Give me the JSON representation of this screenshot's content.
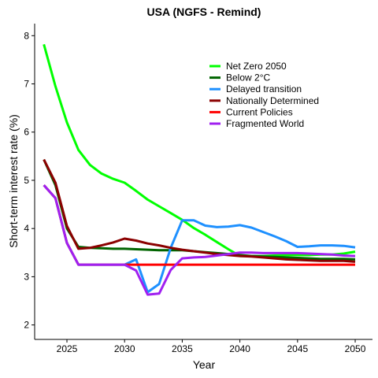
{
  "chart_data": {
    "type": "line",
    "title": "USA (NGFS - Remind)",
    "xlabel": "Year",
    "ylabel": "Short-term interest rate (%)",
    "xlim": [
      2022.2,
      2051.5
    ],
    "ylim": [
      1.7,
      8.25
    ],
    "x_ticks": [
      2025,
      2030,
      2035,
      2040,
      2045,
      2050
    ],
    "y_ticks": [
      2,
      3,
      4,
      5,
      6,
      7,
      8
    ],
    "grid": false,
    "legend_position": "top-right",
    "x": [
      2023,
      2024,
      2025,
      2026,
      2027,
      2028,
      2029,
      2030,
      2031,
      2032,
      2033,
      2034,
      2035,
      2036,
      2037,
      2038,
      2039,
      2040,
      2041,
      2042,
      2043,
      2044,
      2045,
      2046,
      2047,
      2048,
      2049,
      2050
    ],
    "series": [
      {
        "name": "Net Zero 2050",
        "color": "#00ff00",
        "values": [
          7.82,
          6.95,
          6.2,
          5.63,
          5.32,
          5.14,
          5.03,
          4.95,
          4.78,
          4.6,
          4.46,
          4.32,
          4.18,
          4.01,
          3.87,
          3.72,
          3.57,
          3.43,
          3.43,
          3.43,
          3.44,
          3.45,
          3.45,
          3.45,
          3.46,
          3.46,
          3.48,
          3.52
        ]
      },
      {
        "name": "Below 2°C",
        "color": "#006400",
        "values": [
          5.43,
          4.9,
          4.0,
          3.62,
          3.6,
          3.59,
          3.58,
          3.58,
          3.57,
          3.56,
          3.55,
          3.55,
          3.55,
          3.53,
          3.51,
          3.49,
          3.47,
          3.45,
          3.43,
          3.42,
          3.41,
          3.4,
          3.39,
          3.38,
          3.37,
          3.37,
          3.37,
          3.36
        ]
      },
      {
        "name": "Delayed transition",
        "color": "#1e90ff",
        "values": [
          4.9,
          4.63,
          3.7,
          3.25,
          3.25,
          3.25,
          3.25,
          3.25,
          3.36,
          2.68,
          2.85,
          3.6,
          4.17,
          4.17,
          4.06,
          4.03,
          4.04,
          4.07,
          4.02,
          3.93,
          3.84,
          3.74,
          3.62,
          3.63,
          3.65,
          3.65,
          3.64,
          3.61
        ]
      },
      {
        "name": "Nationally Determined",
        "color": "#8b0000",
        "values": [
          5.43,
          4.95,
          4.05,
          3.58,
          3.6,
          3.65,
          3.71,
          3.79,
          3.75,
          3.69,
          3.65,
          3.6,
          3.56,
          3.53,
          3.5,
          3.47,
          3.45,
          3.43,
          3.42,
          3.4,
          3.38,
          3.36,
          3.35,
          3.34,
          3.33,
          3.33,
          3.33,
          3.31
        ]
      },
      {
        "name": "Current Policies",
        "color": "#ff0000",
        "values": [
          4.9,
          4.63,
          3.7,
          3.25,
          3.25,
          3.25,
          3.25,
          3.25,
          3.25,
          3.25,
          3.25,
          3.25,
          3.25,
          3.25,
          3.25,
          3.25,
          3.25,
          3.25,
          3.25,
          3.25,
          3.25,
          3.25,
          3.25,
          3.25,
          3.25,
          3.25,
          3.25,
          3.25
        ]
      },
      {
        "name": "Fragmented World",
        "color": "#a020f0",
        "values": [
          4.9,
          4.63,
          3.7,
          3.25,
          3.25,
          3.25,
          3.25,
          3.25,
          3.13,
          2.63,
          2.65,
          3.14,
          3.38,
          3.4,
          3.41,
          3.44,
          3.47,
          3.5,
          3.5,
          3.49,
          3.49,
          3.49,
          3.49,
          3.48,
          3.47,
          3.46,
          3.44,
          3.43
        ]
      }
    ]
  }
}
